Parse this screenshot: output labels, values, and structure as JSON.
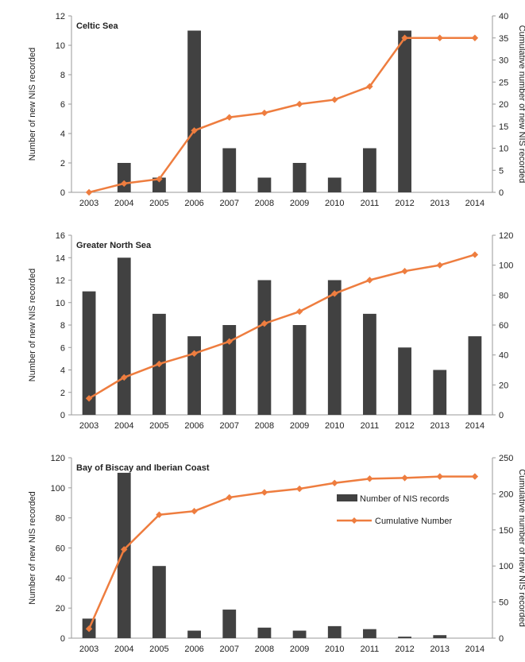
{
  "colors": {
    "bar": "#414141",
    "line": "#ee7d3f",
    "axis": "#9a9a9a"
  },
  "chart_data": [
    {
      "type": "bar+line",
      "title": "Celtic Sea",
      "categories": [
        "2003",
        "2004",
        "2005",
        "2006",
        "2007",
        "2008",
        "2009",
        "2010",
        "2011",
        "2012",
        "2013",
        "2014"
      ],
      "ylabel": "Number of new NIS recorded",
      "y2label": "Cumulative number of new NIS recorded",
      "ylim": [
        0,
        12
      ],
      "yticks": [
        0,
        2,
        4,
        6,
        8,
        10,
        12
      ],
      "y2lim": [
        0,
        40
      ],
      "y2ticks": [
        0,
        5,
        10,
        15,
        20,
        25,
        30,
        35,
        40
      ],
      "series": [
        {
          "kind": "bar",
          "axis": "left",
          "values": [
            0,
            2,
            1,
            11,
            3,
            1,
            2,
            1,
            3,
            11,
            0,
            0
          ]
        },
        {
          "kind": "line",
          "axis": "right",
          "values": [
            0,
            2,
            3,
            14,
            17,
            18,
            20,
            21,
            24,
            35,
            35,
            35
          ]
        }
      ],
      "grid": false
    },
    {
      "type": "bar+line",
      "title": "Greater North Sea",
      "categories": [
        "2003",
        "2004",
        "2005",
        "2006",
        "2007",
        "2008",
        "2009",
        "2010",
        "2011",
        "2012",
        "2013",
        "2014"
      ],
      "ylabel": "Number of new NIS recorded",
      "y2label": "",
      "ylim": [
        0,
        16
      ],
      "yticks": [
        0,
        2,
        4,
        6,
        8,
        10,
        12,
        14,
        16
      ],
      "y2lim": [
        0,
        120
      ],
      "y2ticks": [
        0,
        20,
        40,
        60,
        80,
        100,
        120
      ],
      "series": [
        {
          "kind": "bar",
          "axis": "left",
          "values": [
            11,
            14,
            9,
            7,
            8,
            12,
            8,
            12,
            9,
            6,
            4,
            7
          ]
        },
        {
          "kind": "line",
          "axis": "right",
          "values": [
            11,
            25,
            34,
            41,
            49,
            61,
            69,
            81,
            90,
            96,
            100,
            107
          ]
        }
      ],
      "grid": false
    },
    {
      "type": "bar+line",
      "title": "Bay of Biscay and Iberian Coast",
      "categories": [
        "2003",
        "2004",
        "2005",
        "2006",
        "2007",
        "2008",
        "2009",
        "2010",
        "2011",
        "2012",
        "2013",
        "2014"
      ],
      "ylabel": "Number of new NIS recorded",
      "y2label": "Cumulative number of new NIS recorded",
      "ylim": [
        0,
        120
      ],
      "yticks": [
        0,
        20,
        40,
        60,
        80,
        100,
        120
      ],
      "y2lim": [
        0,
        250
      ],
      "y2ticks": [
        0,
        50,
        100,
        150,
        200,
        250
      ],
      "series": [
        {
          "kind": "bar",
          "axis": "left",
          "name": "Number of NIS records",
          "values": [
            13,
            110,
            48,
            5,
            19,
            7,
            5,
            8,
            6,
            1,
            2,
            0
          ]
        },
        {
          "kind": "line",
          "axis": "right",
          "name": "Cumulative Number",
          "values": [
            13,
            123,
            171,
            176,
            195,
            202,
            207,
            215,
            221,
            222,
            224,
            224
          ]
        }
      ],
      "legend": "right",
      "grid": false
    }
  ]
}
